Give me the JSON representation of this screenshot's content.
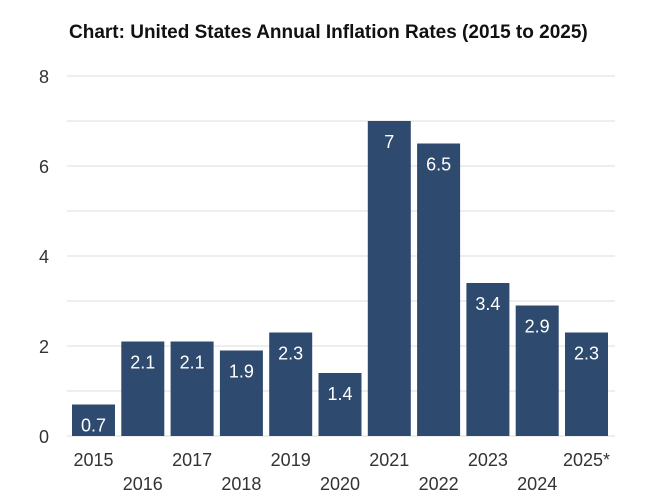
{
  "chart_data": {
    "type": "bar",
    "title": "Chart: United States Annual Inflation Rates (2015 to 2025)",
    "xlabel": "",
    "ylabel": "",
    "categories": [
      "2015",
      "2016",
      "2017",
      "2018",
      "2019",
      "2020",
      "2021",
      "2022",
      "2023",
      "2024",
      "2025*"
    ],
    "values": [
      0.7,
      2.1,
      2.1,
      1.9,
      2.3,
      1.4,
      7,
      6.5,
      3.4,
      2.9,
      2.3
    ],
    "data_labels": [
      "0.7",
      "2.1",
      "2.1",
      "1.9",
      "2.3",
      "1.4",
      "7",
      "6.5",
      "3.4",
      "2.9",
      "2.3"
    ],
    "ylim": [
      0,
      8
    ],
    "y_ticks": [
      0,
      2,
      4,
      6,
      8
    ],
    "grid": true,
    "legend": "none",
    "bar_color": "#2e4a6f",
    "grid_color": "#dddddd"
  }
}
